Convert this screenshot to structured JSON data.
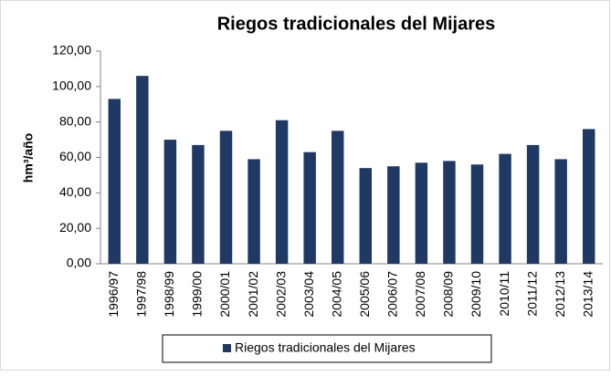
{
  "chart_data": {
    "type": "bar",
    "title": "Riegos tradicionales del Mijares",
    "y_label": "hm³/año",
    "categories": [
      "1996/97",
      "1997/98",
      "1998/99",
      "1999/00",
      "2000/01",
      "2001/02",
      "2002/03",
      "2003/04",
      "2004/05",
      "2005/06",
      "2006/07",
      "2007/08",
      "2008/09",
      "2009/10",
      "2010/11",
      "2011/12",
      "2012/13",
      "2013/14"
    ],
    "series": [
      {
        "name": "Riegos tradicionales del Mijares",
        "color": "#1f3864",
        "values": [
          93,
          106,
          70,
          67,
          75,
          59,
          81,
          63,
          75,
          54,
          55,
          57,
          58,
          56,
          62,
          67,
          59,
          76
        ]
      }
    ],
    "ylim": [
      0,
      120
    ],
    "yticks": [
      {
        "value": 0,
        "label": "0,00"
      },
      {
        "value": 20,
        "label": "20,00"
      },
      {
        "value": 40,
        "label": "40,00"
      },
      {
        "value": 60,
        "label": "60,00"
      },
      {
        "value": 80,
        "label": "80,00"
      },
      {
        "value": 100,
        "label": "100,00"
      },
      {
        "value": 120,
        "label": "120,00"
      }
    ],
    "grid": false,
    "legend": "bottom"
  }
}
